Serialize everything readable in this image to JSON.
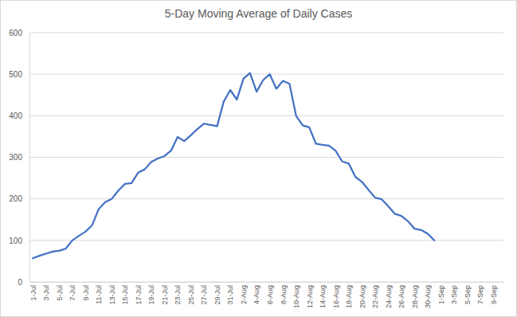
{
  "chart_data": {
    "type": "line",
    "title": "5-Day Moving Average of Daily Cases",
    "categories": [
      "1-Jul",
      null,
      "3-Jul",
      null,
      "5-Jul",
      null,
      "7-Jul",
      null,
      "9-Jul",
      null,
      "11-Jul",
      null,
      "13-Jul",
      null,
      "15-Jul",
      null,
      "17-Jul",
      null,
      "19-Jul",
      null,
      "21-Jul",
      null,
      "23-Jul",
      null,
      "25-Jul",
      null,
      "27-Jul",
      null,
      "29-Jul",
      null,
      "31-Jul",
      null,
      "2-Aug",
      null,
      "4-Aug",
      null,
      "6-Aug",
      null,
      "8-Aug",
      null,
      "10-Aug",
      null,
      "12-Aug",
      null,
      "14-Aug",
      null,
      "16-Aug",
      null,
      "18-Aug",
      null,
      "20-Aug",
      null,
      "22-Aug",
      null,
      "24-Aug",
      null,
      "26-Aug",
      null,
      "28-Aug",
      null,
      "30-Aug",
      null,
      "1-Sep",
      null,
      "3-Sep",
      null,
      "5-Sep",
      null,
      "7-Sep",
      null,
      "9-Sep",
      null
    ],
    "values": [
      57,
      63,
      68,
      73,
      75,
      80,
      100,
      111,
      121,
      136,
      175,
      192,
      200,
      220,
      236,
      238,
      263,
      271,
      289,
      297,
      303,
      316,
      349,
      339,
      353,
      368,
      381,
      378,
      375,
      434,
      462,
      439,
      489,
      503,
      458,
      486,
      500,
      465,
      484,
      477,
      400,
      377,
      372,
      333,
      330,
      328,
      316,
      290,
      285,
      253,
      241,
      222,
      203,
      199,
      182,
      164,
      159,
      146,
      128,
      125,
      116,
      100,
      null,
      null,
      null,
      null,
      null,
      null,
      null,
      null,
      null,
      null
    ],
    "color": "#4472c4",
    "ylim": [
      0,
      600
    ],
    "yticks": [
      0,
      100,
      200,
      300,
      400,
      500,
      600
    ],
    "grid": true
  }
}
